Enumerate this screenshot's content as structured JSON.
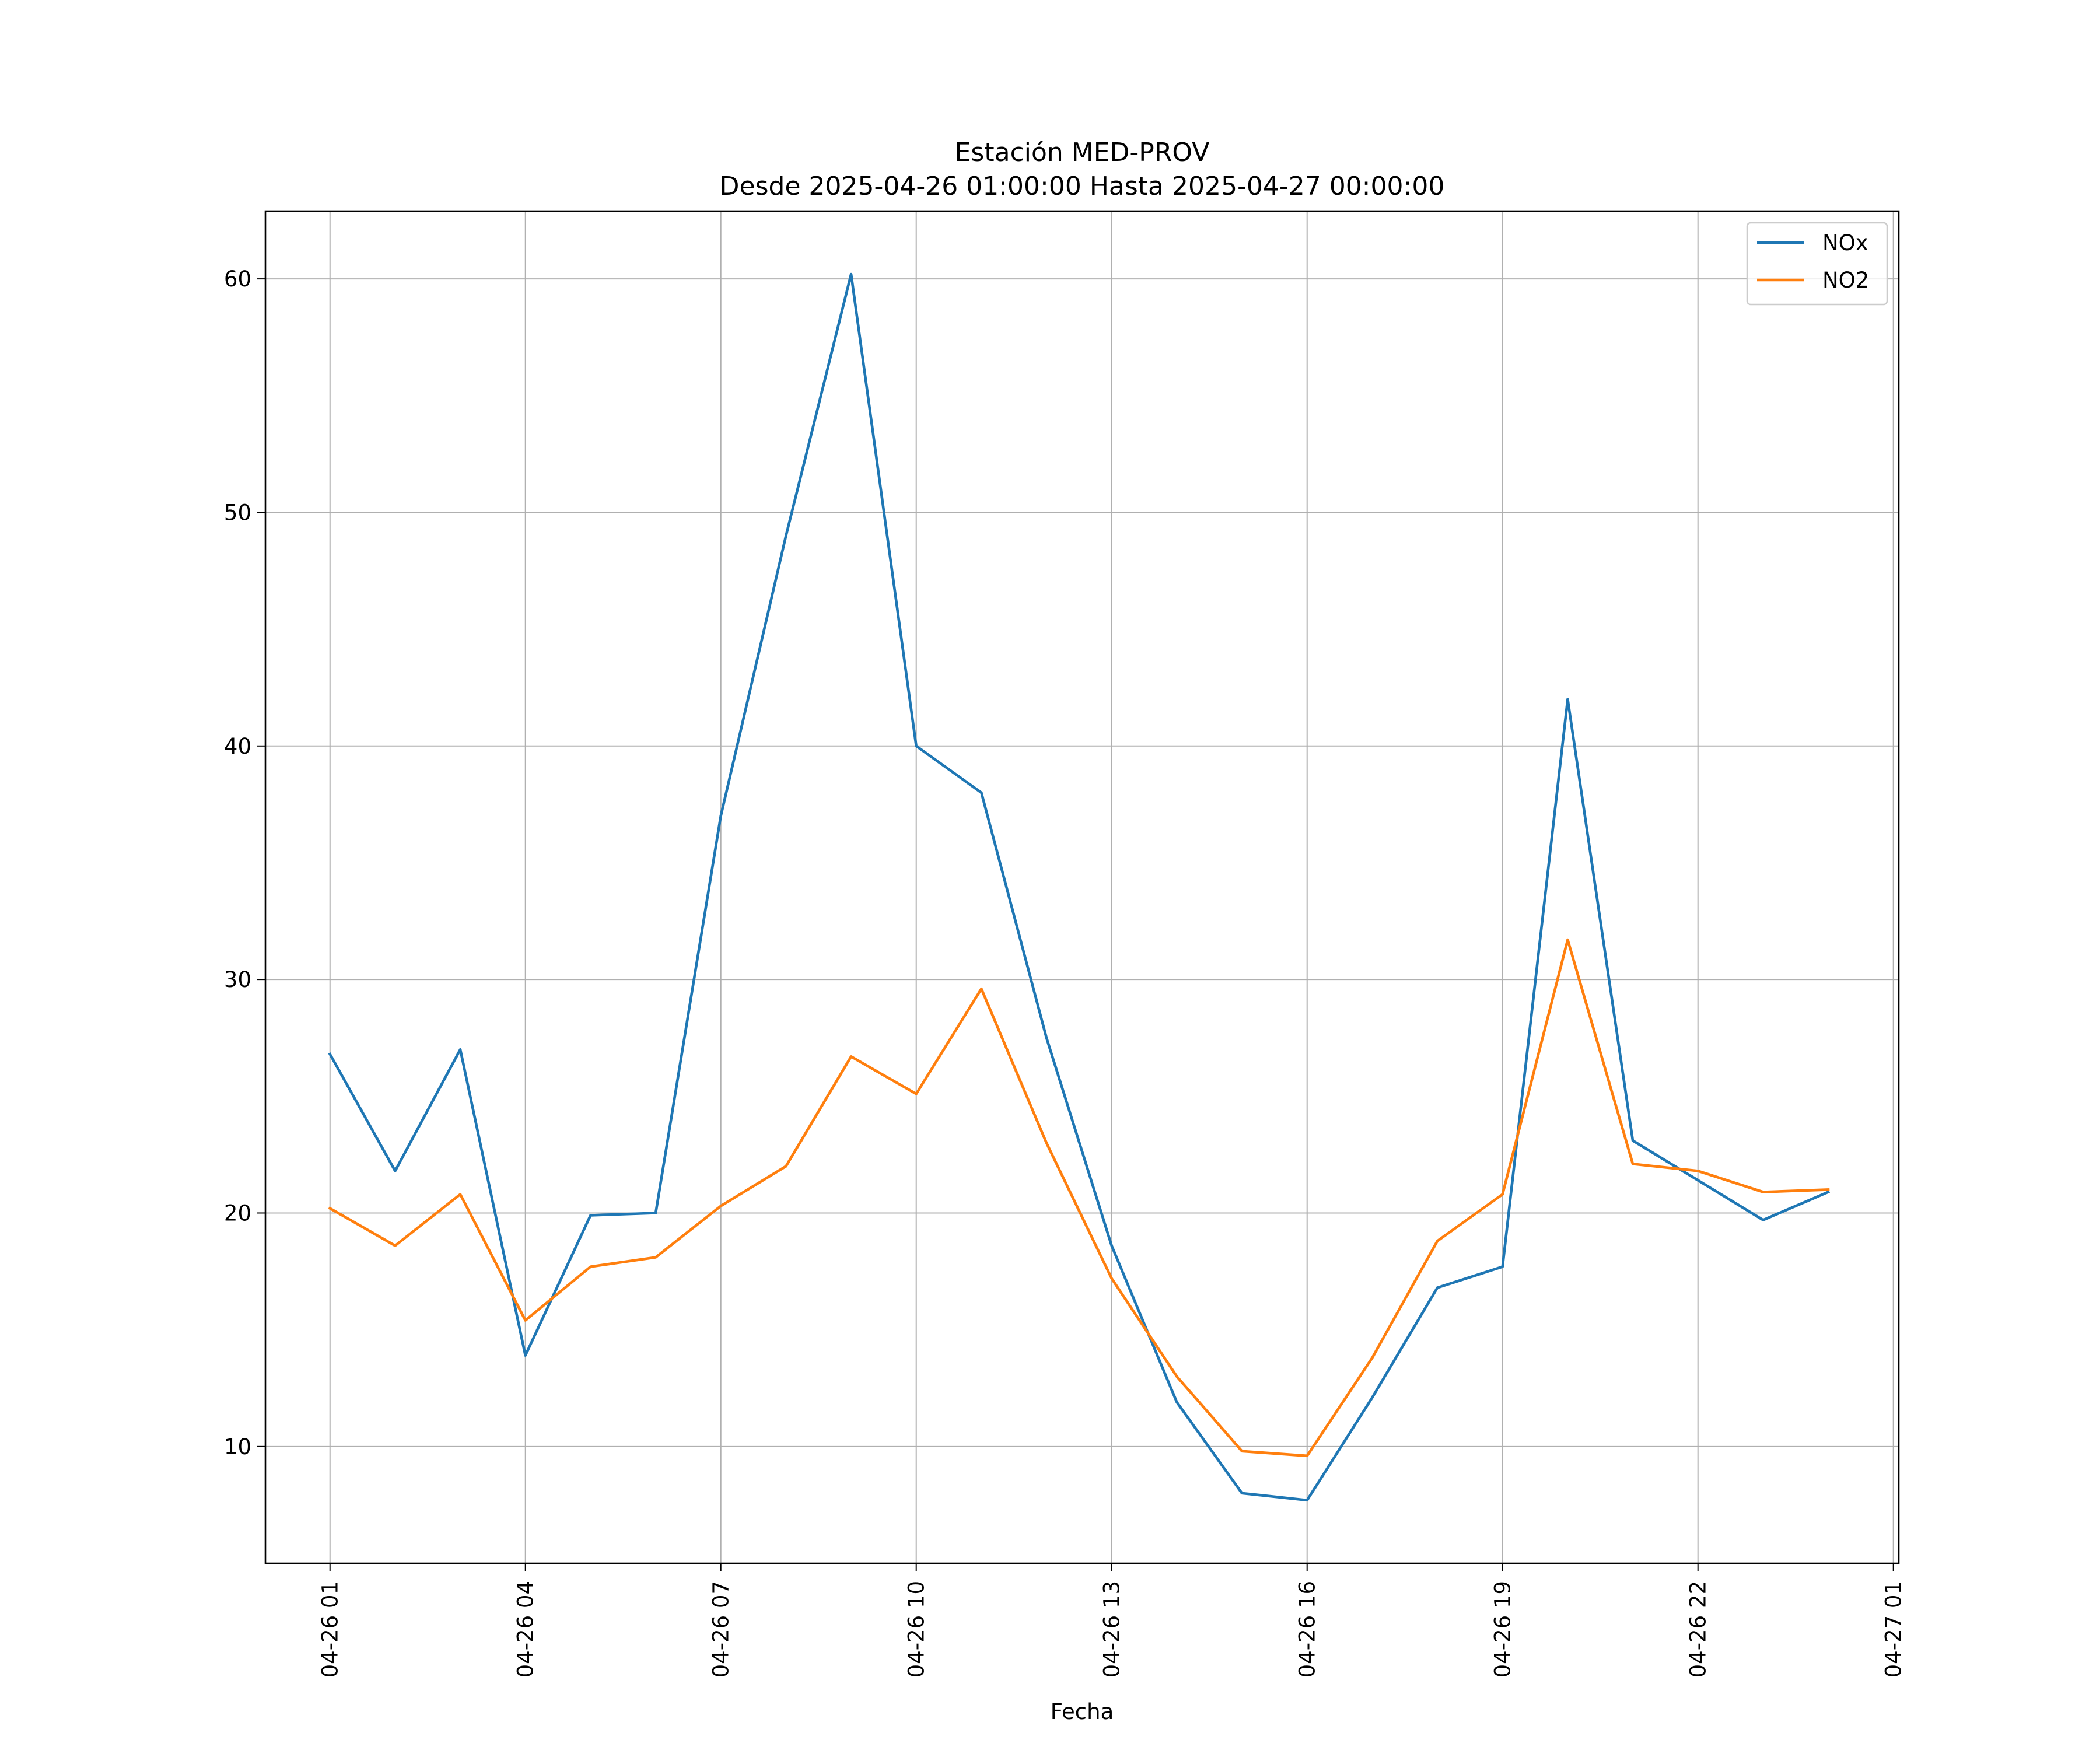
{
  "chart_data": {
    "type": "line",
    "title": "Estación MED-PROV",
    "subtitle": "Desde 2025-04-26 01:00:00 Hasta 2025-04-27 00:00:00",
    "xlabel": "Fecha",
    "ylabel": "",
    "x": [
      "2025-04-26 01:00",
      "2025-04-26 02:00",
      "2025-04-26 03:00",
      "2025-04-26 04:00",
      "2025-04-26 05:00",
      "2025-04-26 06:00",
      "2025-04-26 07:00",
      "2025-04-26 08:00",
      "2025-04-26 09:00",
      "2025-04-26 10:00",
      "2025-04-26 11:00",
      "2025-04-26 12:00",
      "2025-04-26 13:00",
      "2025-04-26 14:00",
      "2025-04-26 15:00",
      "2025-04-26 16:00",
      "2025-04-26 17:00",
      "2025-04-26 18:00",
      "2025-04-26 19:00",
      "2025-04-26 20:00",
      "2025-04-26 21:00",
      "2025-04-26 22:00",
      "2025-04-26 23:00",
      "2025-04-27 00:00"
    ],
    "series": [
      {
        "name": "NOx",
        "color": "#1f77b4",
        "values": [
          26.8,
          21.8,
          27.0,
          13.9,
          19.9,
          20.0,
          37.0,
          49.0,
          60.2,
          40.0,
          38.0,
          27.5,
          18.6,
          11.9,
          8.0,
          7.7,
          12.1,
          16.8,
          17.7,
          42.0,
          23.1,
          21.4,
          19.7,
          20.9
        ]
      },
      {
        "name": "NO2",
        "color": "#ff7f0e",
        "values": [
          20.2,
          18.6,
          20.8,
          15.4,
          17.7,
          18.1,
          20.3,
          22.0,
          26.7,
          25.1,
          29.6,
          23.0,
          17.2,
          13.0,
          9.8,
          9.6,
          13.8,
          18.8,
          20.8,
          31.7,
          22.1,
          21.8,
          20.9,
          21.0
        ]
      }
    ],
    "xticks": [
      "04-26 01",
      "04-26 04",
      "04-26 07",
      "04-26 10",
      "04-26 13",
      "04-26 16",
      "04-26 19",
      "04-26 22",
      "04-27 01"
    ],
    "yticks": [
      10,
      20,
      30,
      40,
      50,
      60
    ],
    "xlim": [
      "2025-04-26 00:00:30",
      "2025-04-27 01:05"
    ],
    "ylim": [
      5.0,
      62.9
    ],
    "grid": true,
    "legend_position": "top-right"
  }
}
